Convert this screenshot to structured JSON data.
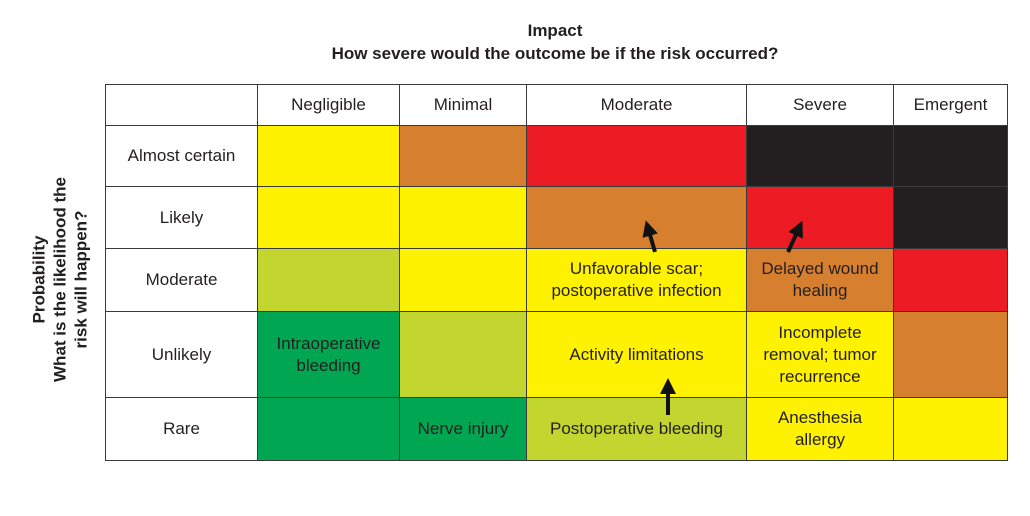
{
  "title": {
    "line1": "Impact",
    "line2": "How severe would the outcome be if the risk occurred?"
  },
  "ylabel": {
    "line1": "Probability",
    "line2": "What is the likelihood the",
    "line3": "risk will happen?"
  },
  "columns": [
    "Negligible",
    "Minimal",
    "Moderate",
    "Severe",
    "Emergent"
  ],
  "rows": [
    "Almost certain",
    "Likely",
    "Moderate",
    "Unlikely",
    "Rare"
  ],
  "colors": {
    "Y": "#fff200",
    "O": "#d67f2e",
    "R": "#ed1c24",
    "K": "#231f20",
    "L": "#c2d62f",
    "G": "#00a651"
  },
  "grid": [
    [
      "Y",
      "O",
      "R",
      "K",
      "K"
    ],
    [
      "Y",
      "Y",
      "O",
      "R",
      "K"
    ],
    [
      "L",
      "Y",
      "Y",
      "O",
      "R"
    ],
    [
      "G",
      "L",
      "Y",
      "Y",
      "O"
    ],
    [
      "G",
      "G",
      "L",
      "Y",
      "Y"
    ]
  ],
  "risks": [
    [
      "",
      "",
      "",
      "",
      ""
    ],
    [
      "",
      "",
      "",
      "",
      ""
    ],
    [
      "",
      "",
      "Unfavorable scar; postoperative infection",
      "Delayed wound healing",
      ""
    ],
    [
      "Intraoperative bleeding",
      "",
      "Activity limitations",
      "Incomplete removal; tumor recurrence",
      ""
    ],
    [
      "",
      "Nerve injury",
      "Postoperative bleeding",
      "Anesthesia allergy",
      ""
    ]
  ]
}
